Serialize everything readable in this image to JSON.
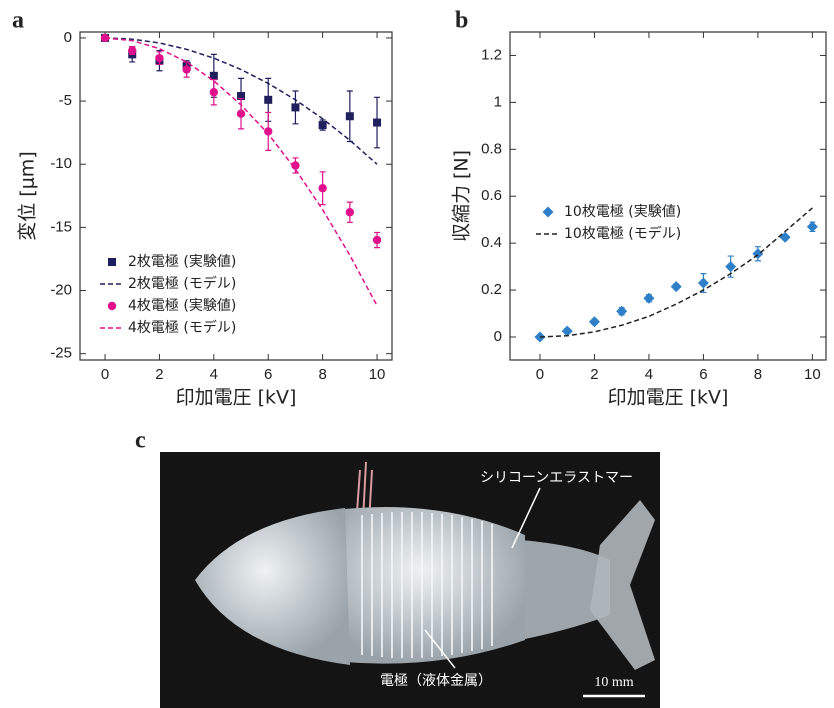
{
  "chart_data": [
    {
      "type": "scatter",
      "panel_label": "a",
      "x_label": "印加電圧 [kV]",
      "y_label": "変位 [μm]",
      "x": [
        0,
        1,
        2,
        3,
        4,
        5,
        6,
        7,
        8,
        9,
        10
      ],
      "xlim": [
        -0.92,
        10.55
      ],
      "xticks": [
        0,
        2,
        4,
        6,
        8,
        10
      ],
      "ylim": [
        -25.5,
        0.47
      ],
      "yticks": [
        0,
        -5,
        -10,
        -15,
        -20,
        -25
      ],
      "legend": "lower left",
      "series": [
        {
          "name": "2枚電極 (実験値)",
          "color": "#1f1f5e",
          "marker": "square",
          "values": [
            0,
            -1.3,
            -1.8,
            -2.2,
            -3.0,
            -4.6,
            -4.9,
            -5.5,
            -6.9,
            -6.2,
            -6.7
          ],
          "errors": [
            0,
            0.6,
            0.8,
            0.4,
            1.7,
            1.4,
            1.7,
            1.3,
            0.4,
            2.0,
            2.0
          ]
        },
        {
          "name": "2枚電極 (モデル)",
          "color": "#1f1f5e",
          "line_style": "dashed",
          "values": [
            0,
            -0.1,
            -0.4,
            -0.9,
            -1.6,
            -2.5,
            -3.6,
            -4.9,
            -6.4,
            -8.1,
            -10.0
          ]
        },
        {
          "name": "4枚電極 (実験値)",
          "color": "#e0108c",
          "marker": "circle",
          "values": [
            0,
            -1.0,
            -1.6,
            -2.5,
            -4.3,
            -6.0,
            -7.4,
            -10.1,
            -11.9,
            -13.8,
            -16.0
          ],
          "errors": [
            0,
            0.3,
            0.5,
            0.6,
            1.0,
            1.2,
            1.5,
            0.6,
            1.3,
            0.8,
            0.6
          ]
        },
        {
          "name": "4枚電極 (モデル)",
          "color": "#e0108c",
          "line_style": "dashed",
          "values": [
            0,
            -0.21,
            -0.85,
            -1.9,
            -3.4,
            -5.3,
            -7.6,
            -10.4,
            -13.6,
            -17.2,
            -21.2
          ]
        }
      ]
    },
    {
      "type": "scatter",
      "panel_label": "b",
      "x_label": "印加電圧 [kV]",
      "y_label": "収縮力 [N]",
      "x": [
        0,
        1,
        2,
        3,
        4,
        5,
        6,
        7,
        8,
        9,
        10
      ],
      "xlim": [
        -1.1,
        10.5
      ],
      "xticks": [
        0,
        2,
        4,
        6,
        8,
        10
      ],
      "ylim": [
        -0.098,
        1.3
      ],
      "yticks": [
        0,
        0.2,
        0.4,
        0.6,
        0.8,
        1,
        1.2
      ],
      "legend": "center left",
      "series": [
        {
          "name": "10枚電極 (実験値)",
          "color": "#2f7fc8",
          "marker": "diamond",
          "values": [
            0,
            0.025,
            0.065,
            0.11,
            0.165,
            0.215,
            0.23,
            0.3,
            0.355,
            0.425,
            0.47
          ],
          "errors": [
            0,
            0.01,
            0.01,
            0.015,
            0.015,
            0.01,
            0.04,
            0.045,
            0.03,
            0.01,
            0.02
          ]
        },
        {
          "name": "10枚電極 (モデル)",
          "color": "#222222",
          "line_style": "dashed",
          "values": [
            0,
            0.0055,
            0.022,
            0.05,
            0.088,
            0.14,
            0.2,
            0.27,
            0.35,
            0.45,
            0.55
          ]
        }
      ]
    }
  ],
  "photo": {
    "panel_label": "c",
    "material_label": "シリコーンエラストマー",
    "electrode_label": "電極（液体金属）",
    "scale_bar": "10 mm"
  }
}
